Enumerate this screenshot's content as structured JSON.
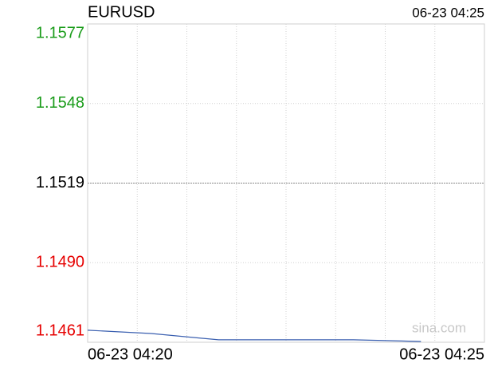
{
  "chart_data": {
    "type": "line",
    "title": "EURUSD",
    "timestamp": "06-23 04:25",
    "watermark": "sina.com",
    "x": [
      0,
      0.8,
      1.65,
      3.35,
      4.2
    ],
    "series": [
      {
        "name": "EURUSD",
        "color": "#3a5fb0",
        "values": [
          1.14654,
          1.14642,
          1.14619,
          1.14619,
          1.14613
        ]
      }
    ],
    "xlim": [
      0,
      5
    ],
    "xticks": [
      {
        "value": 0,
        "label": "06-23 04:20"
      },
      {
        "value": 5,
        "label": "06-23 04:25"
      }
    ],
    "ylim": [
      1.1461,
      1.1577
    ],
    "yticks": [
      1.1577,
      1.1548,
      1.1519,
      {
        "value": 1.149,
        "label": "1.1490"
      },
      1.1461
    ],
    "up_color": "#1a9c1a",
    "down_color": "#e60000",
    "neutral_color": "#000000",
    "grid": true
  }
}
